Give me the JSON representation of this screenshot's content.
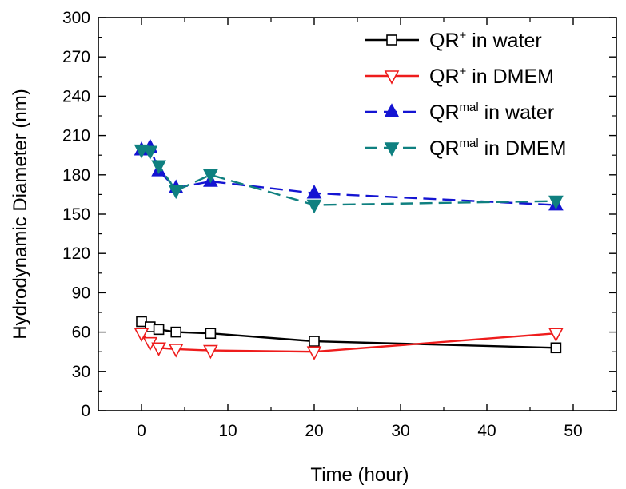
{
  "chart_data": {
    "type": "line",
    "title": "",
    "xlabel": "Time (hour)",
    "ylabel": "Hydrodynamic Diameter (nm)",
    "xlim": [
      -5,
      55
    ],
    "ylim": [
      0,
      300
    ],
    "xticks": [
      0,
      10,
      20,
      30,
      40,
      50
    ],
    "yticks": [
      0,
      30,
      60,
      90,
      120,
      150,
      180,
      210,
      240,
      270,
      300
    ],
    "grid": false,
    "legend_position": "top-right",
    "series": [
      {
        "name_main": "QR",
        "name_sup": "+",
        "name_rest": " in water",
        "color": "#000000",
        "line_style": "solid",
        "marker": "square-open",
        "x": [
          0,
          1,
          2,
          4,
          8,
          20,
          48
        ],
        "y": [
          68,
          64,
          62,
          60,
          59,
          53,
          48
        ]
      },
      {
        "name_main": "QR",
        "name_sup": "+",
        "name_rest": " in DMEM",
        "color": "#ee1c1c",
        "line_style": "solid",
        "marker": "triangle-down-open",
        "x": [
          0,
          1,
          2,
          4,
          8,
          20,
          48
        ],
        "y": [
          59,
          52,
          48,
          47,
          46,
          45,
          59
        ]
      },
      {
        "name_main": "QR",
        "name_sup": "mal",
        "name_rest": " in water",
        "color": "#1414d2",
        "line_style": "dashed",
        "marker": "triangle-up-filled",
        "x": [
          0,
          1,
          2,
          4,
          8,
          20,
          48
        ],
        "y": [
          199,
          201,
          183,
          170,
          175,
          166,
          157
        ]
      },
      {
        "name_main": "QR",
        "name_sup": "mal",
        "name_rest": " in DMEM",
        "color": "#0f8080",
        "line_style": "dashed",
        "marker": "triangle-down-filled",
        "x": [
          0,
          1,
          2,
          4,
          8,
          20,
          48
        ],
        "y": [
          199,
          198,
          187,
          168,
          180,
          157,
          160
        ]
      }
    ]
  }
}
